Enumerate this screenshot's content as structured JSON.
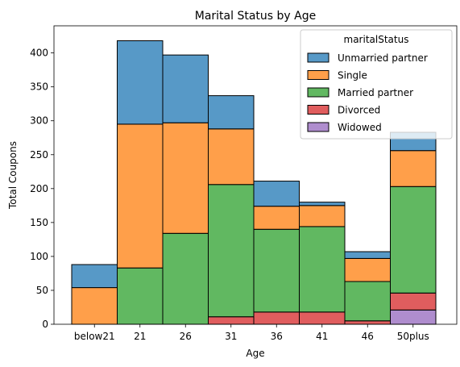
{
  "chart_data": {
    "type": "bar",
    "stacked": true,
    "title": "Marital Status by Age",
    "xlabel": "Age",
    "ylabel": "Total Coupons",
    "categories": [
      "below21",
      "21",
      "26",
      "31",
      "36",
      "41",
      "46",
      "50plus"
    ],
    "ylim": [
      0,
      440
    ],
    "yticks": [
      0,
      50,
      100,
      150,
      200,
      250,
      300,
      350,
      400
    ],
    "grid": false,
    "legend": {
      "title": "maritalStatus",
      "placement": "top-right",
      "entries": [
        "Unmarried partner",
        "Single",
        "Married partner",
        "Divorced",
        "Widowed"
      ]
    },
    "series": [
      {
        "name": "Widowed",
        "color": "#9467bd",
        "values": [
          0,
          0,
          0,
          0,
          0,
          0,
          0,
          21
        ]
      },
      {
        "name": "Divorced",
        "color": "#d62728",
        "values": [
          0,
          0,
          0,
          11,
          18,
          18,
          5,
          25
        ]
      },
      {
        "name": "Married partner",
        "color": "#2ca02c",
        "values": [
          0,
          83,
          134,
          195,
          122,
          126,
          58,
          157
        ]
      },
      {
        "name": "Single",
        "color": "#ff7f0e",
        "values": [
          54,
          212,
          163,
          82,
          34,
          31,
          34,
          53
        ]
      },
      {
        "name": "Unmarried partner",
        "color": "#1f77b4",
        "values": [
          34,
          123,
          100,
          49,
          37,
          5,
          10,
          27
        ]
      }
    ]
  }
}
